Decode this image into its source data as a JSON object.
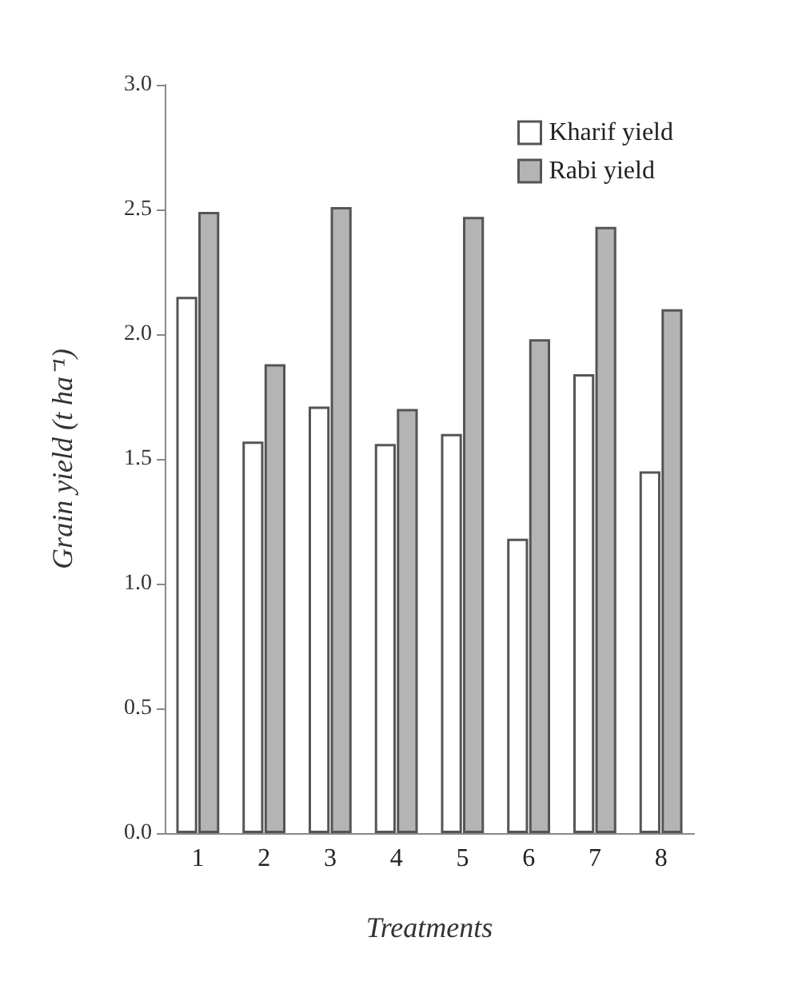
{
  "chart_data": {
    "type": "bar",
    "xlabel": "Treatments",
    "ylabel": "Grain yield (t ha⁻¹)",
    "categories": [
      "1",
      "2",
      "3",
      "4",
      "5",
      "6",
      "7",
      "8"
    ],
    "series": [
      {
        "name": "Kharif yield",
        "color": "#ffffff",
        "values": [
          2.15,
          1.57,
          1.71,
          1.56,
          1.6,
          1.18,
          1.84,
          1.45
        ]
      },
      {
        "name": "Rabi yield",
        "color": "#b4b4b4",
        "values": [
          2.49,
          1.88,
          2.51,
          1.7,
          2.47,
          1.98,
          2.43,
          2.1
        ]
      }
    ],
    "ylim": [
      0,
      3
    ],
    "yticks": [
      {
        "value": 0,
        "label": "0.0"
      },
      0.5,
      {
        "value": 1,
        "label": "1.0"
      },
      1.5,
      {
        "value": 2,
        "label": "2.0"
      },
      2.5,
      {
        "value": 3,
        "label": "3.0"
      }
    ],
    "grid": false,
    "legend": "top right"
  }
}
